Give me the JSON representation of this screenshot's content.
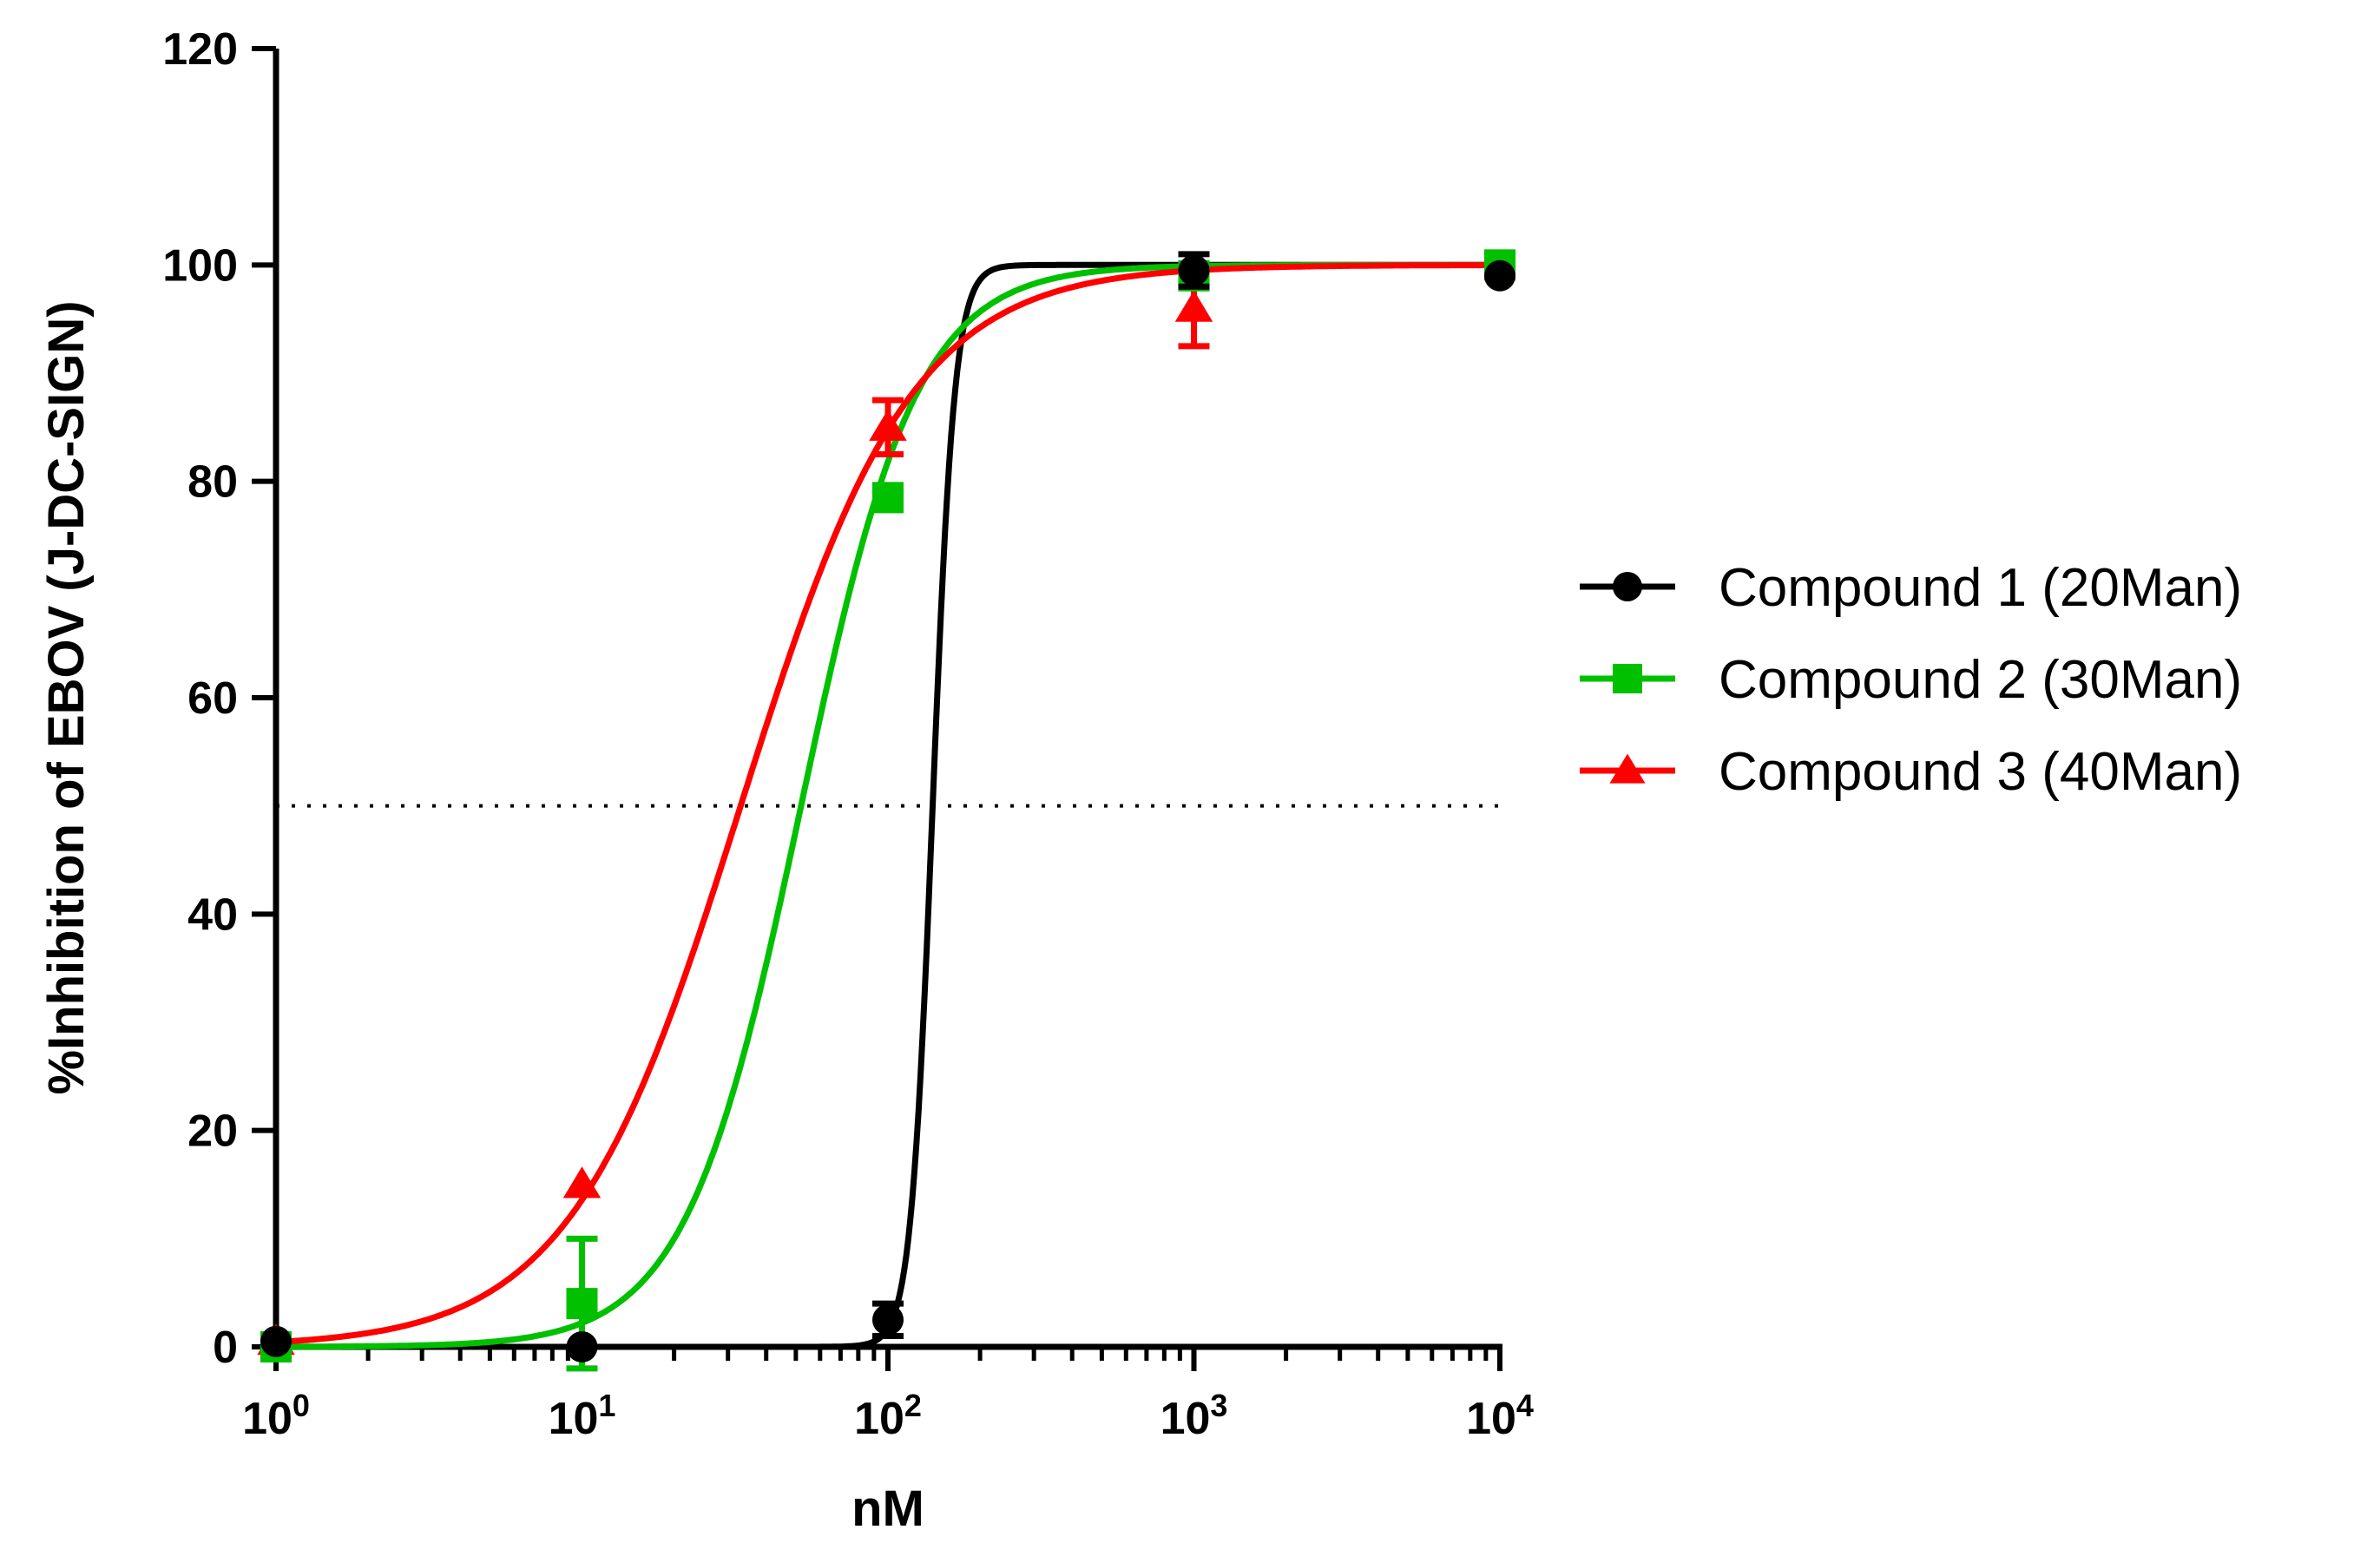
{
  "chart_data": {
    "type": "scatter",
    "title": "",
    "xlabel": "nM",
    "ylabel": "%Inhibition of EBOV (J-DC-SIGN)",
    "x_scale": "log10",
    "xlim": [
      1,
      10000
    ],
    "ylim": [
      0,
      120
    ],
    "x_ticks": [
      {
        "value": 1,
        "base": "10",
        "exp": "0"
      },
      {
        "value": 10,
        "base": "10",
        "exp": "1"
      },
      {
        "value": 100,
        "base": "10",
        "exp": "2"
      },
      {
        "value": 1000,
        "base": "10",
        "exp": "3"
      },
      {
        "value": 10000,
        "base": "10",
        "exp": "4"
      }
    ],
    "y_ticks": [
      {
        "value": 0,
        "label": "0"
      },
      {
        "value": 20,
        "label": "20"
      },
      {
        "value": 40,
        "label": "40"
      },
      {
        "value": 60,
        "label": "60"
      },
      {
        "value": 80,
        "label": "80"
      },
      {
        "value": 100,
        "label": "100"
      },
      {
        "value": 120,
        "label": "120"
      }
    ],
    "reference_line": {
      "y": 50,
      "style": "dotted",
      "x_range": [
        1,
        10000
      ]
    },
    "legend_position": "right",
    "series": [
      {
        "name": "Compound 1 (20Man)",
        "color": "#000000",
        "marker": "circle",
        "fit": {
          "bottom": 0,
          "top": 100,
          "ec50": 140,
          "hill": 12
        },
        "points": [
          {
            "x": 1,
            "y": 0.5,
            "err": 0
          },
          {
            "x": 10,
            "y": 0,
            "err": 0
          },
          {
            "x": 100,
            "y": 2.5,
            "err": 1.5
          },
          {
            "x": 1000,
            "y": 99.5,
            "err": 1.5
          },
          {
            "x": 10000,
            "y": 99,
            "err": 0
          }
        ]
      },
      {
        "name": "Compound 2 (30Man)",
        "color": "#00c000",
        "marker": "square",
        "fit": {
          "bottom": 0,
          "top": 100,
          "ec50": 52,
          "hill": 2.3
        },
        "points": [
          {
            "x": 1,
            "y": 0,
            "err": 0
          },
          {
            "x": 10,
            "y": 4,
            "err": 6
          },
          {
            "x": 100,
            "y": 78.5,
            "err": 1
          },
          {
            "x": 1000,
            "y": 99,
            "err": 1
          },
          {
            "x": 10000,
            "y": 100,
            "err": 0
          }
        ]
      },
      {
        "name": "Compound 3 (40Man)",
        "color": "#ff0000",
        "marker": "triangle",
        "fit": {
          "bottom": 0,
          "top": 100,
          "ec50": 33,
          "hill": 1.55
        },
        "points": [
          {
            "x": 1,
            "y": 0.5,
            "err": 0
          },
          {
            "x": 10,
            "y": 15,
            "err": 0
          },
          {
            "x": 100,
            "y": 85,
            "err": 2.5
          },
          {
            "x": 1000,
            "y": 96,
            "err": 3.5
          }
        ]
      }
    ]
  }
}
